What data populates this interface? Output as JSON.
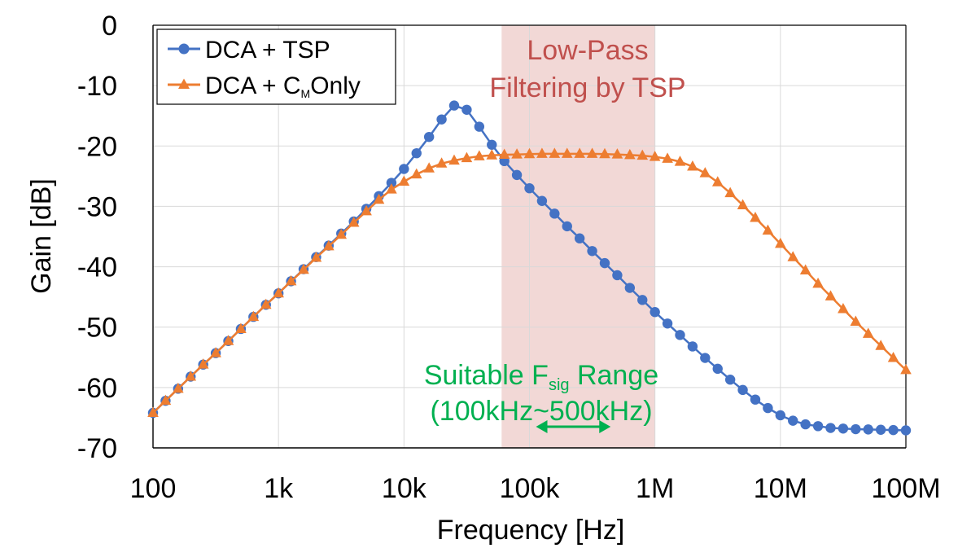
{
  "chart_data": {
    "type": "line",
    "xscale": "log",
    "xlim": [
      100,
      100000000
    ],
    "ylim": [
      -70,
      0
    ],
    "xlabel": "Frequency [Hz]",
    "ylabel": "Gain [dB]",
    "grid": true,
    "legend_position": "top-left",
    "x_ticks": [
      {
        "value": 100,
        "label": "100"
      },
      {
        "value": 1000,
        "label": "1k"
      },
      {
        "value": 10000,
        "label": "10k"
      },
      {
        "value": 100000,
        "label": "100k"
      },
      {
        "value": 1000000,
        "label": "1M"
      },
      {
        "value": 10000000,
        "label": "10M"
      },
      {
        "value": 100000000,
        "label": "100M"
      }
    ],
    "y_ticks": [
      {
        "value": 0,
        "label": "0"
      },
      {
        "value": -10,
        "label": "-10"
      },
      {
        "value": -20,
        "label": "-20"
      },
      {
        "value": -30,
        "label": "-30"
      },
      {
        "value": -40,
        "label": "-40"
      },
      {
        "value": -50,
        "label": "-50"
      },
      {
        "value": -60,
        "label": "-60"
      },
      {
        "value": -70,
        "label": "-70"
      }
    ],
    "series": [
      {
        "name": "DCA + TSP",
        "color": "#4472C4",
        "marker": "circle",
        "x": [
          100,
          125.9,
          158.5,
          199.5,
          251.2,
          316.2,
          398.1,
          501.2,
          631,
          794.3,
          1000,
          1258.9,
          1584.9,
          1995.3,
          2511.9,
          3162.3,
          3981.1,
          5011.9,
          6309.6,
          7943.3,
          10000,
          12589,
          15849,
          19953,
          25119,
          31623,
          39811,
          50119,
          63096,
          79433,
          100000,
          125890,
          158490,
          199530,
          251190,
          316230,
          398110,
          501190,
          630960,
          794330,
          1000000,
          1258900,
          1584900,
          1995300,
          2511900,
          3162300,
          3981100,
          5011900,
          6309600,
          7943300,
          10000000,
          12589000,
          15849000,
          19953000,
          25119000,
          31623000,
          39811000,
          50119000,
          63096000,
          79433000,
          100000000
        ],
        "y": [
          -64.2,
          -62.2,
          -60.2,
          -58.2,
          -56.2,
          -54.3,
          -52.3,
          -50.3,
          -48.3,
          -46.3,
          -44.4,
          -42.4,
          -40.4,
          -38.4,
          -36.5,
          -34.5,
          -32.5,
          -30.4,
          -28.3,
          -26.1,
          -23.8,
          -21.2,
          -18.5,
          -15.6,
          -13.3,
          -14,
          -16.8,
          -19.8,
          -22.5,
          -24.8,
          -27,
          -29.1,
          -31.2,
          -33.3,
          -35.3,
          -37.4,
          -39.4,
          -41.4,
          -43.5,
          -45.5,
          -47.5,
          -49.4,
          -51.3,
          -53.2,
          -55.1,
          -56.9,
          -58.7,
          -60.4,
          -62,
          -63.4,
          -64.6,
          -65.5,
          -66.1,
          -66.4,
          -66.7,
          -66.8,
          -66.9,
          -66.95,
          -67,
          -67.05,
          -67.1
        ]
      },
      {
        "name": "DCA + CMOnly",
        "legend_main": "DCA + C",
        "legend_sub": "M",
        "legend_tail": "Only",
        "color": "#ED7D31",
        "marker": "triangle",
        "x": [
          100,
          125.9,
          158.5,
          199.5,
          251.2,
          316.2,
          398.1,
          501.2,
          631,
          794.3,
          1000,
          1258.9,
          1584.9,
          1995.3,
          2511.9,
          3162.3,
          3981.1,
          5011.9,
          6309.6,
          7943.3,
          10000,
          12589,
          15849,
          19953,
          25119,
          31623,
          39811,
          50119,
          63096,
          79433,
          100000,
          125890,
          158490,
          199530,
          251190,
          316230,
          398110,
          501190,
          630960,
          794330,
          1000000,
          1258900,
          1584900,
          1995300,
          2511900,
          3162300,
          3981100,
          5011900,
          6309600,
          7943300,
          10000000,
          12589000,
          15849000,
          19953000,
          25119000,
          31623000,
          39811000,
          50119000,
          63096000,
          79433000,
          100000000
        ],
        "y": [
          -64.2,
          -62.2,
          -60.2,
          -58.2,
          -56.2,
          -54.3,
          -52.3,
          -50.3,
          -48.3,
          -46.3,
          -44.4,
          -42.4,
          -40.5,
          -38.5,
          -36.6,
          -34.7,
          -32.7,
          -30.8,
          -28.9,
          -27.2,
          -25.9,
          -24.7,
          -23.7,
          -22.9,
          -22.4,
          -22,
          -21.7,
          -21.55,
          -21.45,
          -21.4,
          -21.35,
          -21.3,
          -21.3,
          -21.3,
          -21.3,
          -21.3,
          -21.35,
          -21.4,
          -21.5,
          -21.6,
          -21.8,
          -22.1,
          -22.6,
          -23.4,
          -24.5,
          -26,
          -27.8,
          -29.8,
          -31.9,
          -34,
          -36.2,
          -38.4,
          -40.6,
          -42.8,
          -44.9,
          -47,
          -49.1,
          -51.1,
          -53.1,
          -55.1,
          -57.1
        ]
      }
    ],
    "shaded_region": {
      "x_start": 60000,
      "x_end": 1000000,
      "color": "#E8B8B4",
      "label_lines": [
        "Low-Pass",
        "Filtering by TSP"
      ],
      "label_color": "#C0504D"
    },
    "annotation": {
      "line1_main": "Suitable F",
      "line1_sub": "sig",
      "line1_tail": " Range",
      "line2": "(100kHz~500kHz)",
      "color": "#00B050",
      "arrow_x_start": 100000,
      "arrow_x_end": 500000,
      "arrow_y": -66.5
    }
  }
}
